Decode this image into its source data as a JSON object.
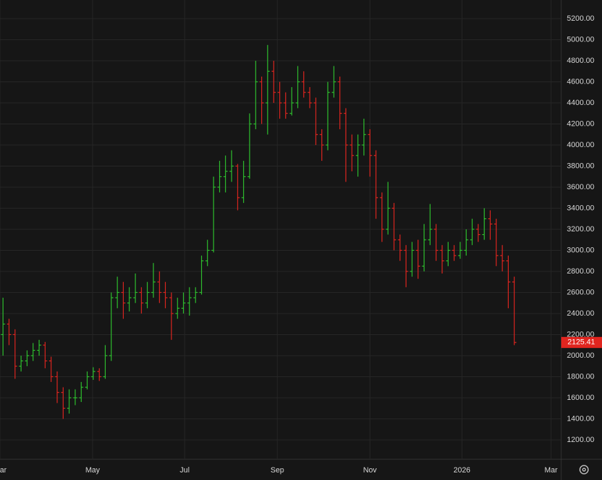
{
  "chart_data": {
    "type": "ohlc",
    "open": [
      2200,
      2300,
      2200,
      1900,
      1950,
      2000,
      2050,
      2100,
      1950,
      1800,
      1650,
      1500,
      1600,
      1600,
      1700,
      1800,
      1850,
      1800,
      2000,
      2550,
      2600,
      2500,
      2550,
      2600,
      2500,
      2600,
      2700,
      2600,
      2550,
      2400,
      2450,
      2500,
      2550,
      2600,
      2900,
      3000,
      3600,
      3700,
      3750,
      3800,
      3500,
      3700,
      4200,
      4600,
      4400,
      4700,
      4500,
      4400,
      4300,
      4400,
      4600,
      4500,
      4400,
      4100,
      4000,
      4500,
      4600,
      4300,
      4000,
      3900,
      4000,
      4100,
      3900,
      3500,
      3200,
      3400,
      3100,
      3000,
      2800,
      3000,
      2850,
      3100,
      3200,
      3000,
      2900,
      3000,
      2950,
      3000,
      3100,
      3200,
      3150,
      3300,
      3250,
      2950,
      2900,
      2700
    ],
    "high": [
      2550,
      2350,
      2250,
      2000,
      2050,
      2120,
      2150,
      2130,
      1990,
      1850,
      1700,
      1680,
      1680,
      1750,
      1850,
      1890,
      1880,
      2100,
      2600,
      2750,
      2700,
      2650,
      2780,
      2650,
      2700,
      2880,
      2800,
      2700,
      2600,
      2550,
      2600,
      2650,
      2650,
      2950,
      3100,
      3700,
      3850,
      3900,
      3950,
      3820,
      3850,
      4300,
      4800,
      4650,
      4950,
      4800,
      4600,
      4500,
      4550,
      4750,
      4700,
      4550,
      4450,
      4150,
      4600,
      4750,
      4650,
      4350,
      4100,
      4100,
      4250,
      4150,
      3950,
      3550,
      3650,
      3450,
      3150,
      3050,
      3080,
      3100,
      3250,
      3440,
      3250,
      3050,
      3080,
      3050,
      3080,
      3200,
      3300,
      3250,
      3400,
      3380,
      3300,
      3050,
      2950,
      2750
    ],
    "low": [
      2000,
      2100,
      1780,
      1850,
      1900,
      1950,
      2000,
      1880,
      1750,
      1550,
      1400,
      1450,
      1530,
      1560,
      1680,
      1770,
      1760,
      1780,
      1950,
      2450,
      2350,
      2420,
      2500,
      2400,
      2450,
      2550,
      2500,
      2450,
      2150,
      2350,
      2400,
      2380,
      2500,
      2580,
      2850,
      2980,
      3550,
      3550,
      3650,
      3380,
      3450,
      3680,
      4150,
      4200,
      4100,
      4400,
      4250,
      4250,
      4280,
      4350,
      4450,
      4350,
      4000,
      3850,
      3950,
      4450,
      4150,
      3650,
      3750,
      3700,
      3900,
      3700,
      3300,
      3080,
      3150,
      3000,
      2900,
      2650,
      2750,
      2730,
      2800,
      3050,
      2900,
      2780,
      2850,
      2900,
      2920,
      2950,
      3050,
      3080,
      3100,
      3100,
      2850,
      2800,
      2450,
      2100
    ],
    "close": [
      2300,
      2200,
      1900,
      1950,
      2000,
      2050,
      2100,
      1950,
      1800,
      1650,
      1500,
      1600,
      1600,
      1700,
      1800,
      1850,
      1800,
      2000,
      2550,
      2600,
      2500,
      2550,
      2600,
      2500,
      2600,
      2700,
      2600,
      2550,
      2400,
      2450,
      2500,
      2550,
      2600,
      2900,
      3000,
      3600,
      3700,
      3750,
      3800,
      3500,
      3700,
      4200,
      4600,
      4400,
      4700,
      4500,
      4400,
      4300,
      4400,
      4600,
      4500,
      4400,
      4100,
      4000,
      4500,
      4600,
      4300,
      4000,
      3900,
      4000,
      4100,
      3900,
      3500,
      3200,
      3400,
      3100,
      3000,
      2800,
      3000,
      2850,
      3100,
      3200,
      3000,
      2900,
      3000,
      2950,
      3000,
      3100,
      3200,
      3150,
      3300,
      3250,
      2950,
      2900,
      2700,
      2125.41
    ],
    "up_color": "#2ec22e",
    "down_color": "#e0251f",
    "last_price": 2125.41,
    "last_price_label": "2125.41",
    "xlim": [
      0,
      93.3
    ],
    "xticks": [
      {
        "value": 0,
        "label": "Mar"
      },
      {
        "value": 15.4,
        "label": "May"
      },
      {
        "value": 30.7,
        "label": "Jul"
      },
      {
        "value": 46.1,
        "label": "Sep"
      },
      {
        "value": 61.5,
        "label": "Nov"
      },
      {
        "value": 76.8,
        "label": "2026"
      },
      {
        "value": 91.6,
        "label": "Mar"
      }
    ],
    "ylim": [
      1016,
      5377
    ],
    "yticks": [
      {
        "value": 1200,
        "label": "1200.00"
      },
      {
        "value": 1400,
        "label": "1400.00"
      },
      {
        "value": 1600,
        "label": "1600.00"
      },
      {
        "value": 1800,
        "label": "1800.00"
      },
      {
        "value": 2000,
        "label": "2000.00"
      },
      {
        "value": 2200,
        "label": "2200.00"
      },
      {
        "value": 2400,
        "label": "2400.00"
      },
      {
        "value": 2600,
        "label": "2600.00"
      },
      {
        "value": 2800,
        "label": "2800.00"
      },
      {
        "value": 3000,
        "label": "3000.00"
      },
      {
        "value": 3200,
        "label": "3200.00"
      },
      {
        "value": 3400,
        "label": "3400.00"
      },
      {
        "value": 3600,
        "label": "3600.00"
      },
      {
        "value": 3800,
        "label": "3800.00"
      },
      {
        "value": 4000,
        "label": "4000.00"
      },
      {
        "value": 4200,
        "label": "4200.00"
      },
      {
        "value": 4400,
        "label": "4400.00"
      },
      {
        "value": 4600,
        "label": "4600.00"
      },
      {
        "value": 4800,
        "label": "4800.00"
      },
      {
        "value": 5000,
        "label": "5000.00"
      },
      {
        "value": 5200,
        "label": "5200.00"
      }
    ],
    "grid": true
  }
}
